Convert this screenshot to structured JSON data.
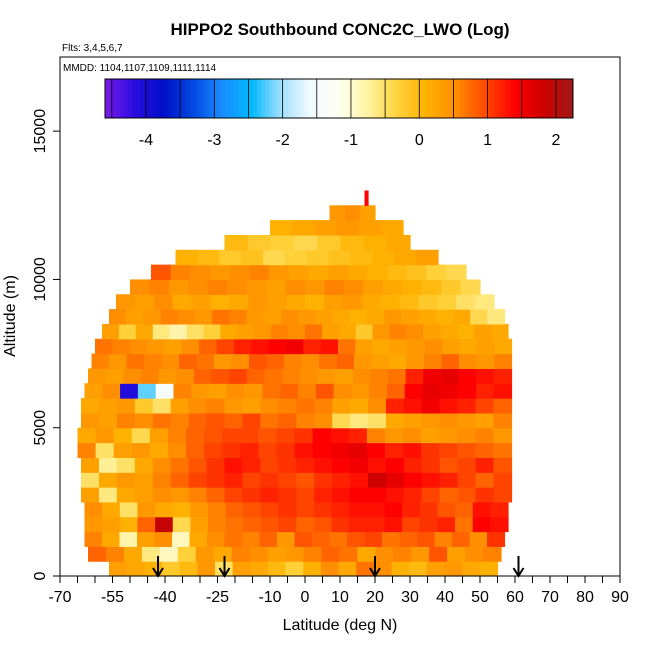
{
  "chart_data": {
    "type": "heatmap",
    "title": "HIPPO2 Southbound CONC2C_LWO (Log)",
    "subtitle_flights": "Flts: 3,4,5,6,7",
    "subtitle_dates": "MMDD: 1104,1107,1109,1111,1114",
    "xlabel": "Latitude (deg N)",
    "ylabel": "Altitude (m)",
    "xlim": [
      -70,
      90
    ],
    "ylim": [
      0,
      17500
    ],
    "x_ticks": [
      -70,
      -55,
      -40,
      -25,
      -10,
      0,
      10,
      20,
      30,
      40,
      50,
      60,
      70,
      80,
      90
    ],
    "x_minor_ticks": [
      -65,
      -60,
      -50,
      -45,
      -35,
      -30,
      -20,
      -15,
      -5,
      5,
      15,
      25,
      35,
      45,
      55,
      65,
      75,
      85
    ],
    "y_ticks": [
      0,
      5000,
      10000,
      15000
    ],
    "colorbar": {
      "range": [
        -4.6,
        2.25
      ],
      "ticks": [
        -4,
        -3,
        -2,
        -1,
        0,
        1,
        2
      ],
      "colors": [
        "#7a1be8",
        "#2a0ce0",
        "#0010c8",
        "#0048e0",
        "#1a8cff",
        "#00b8ff",
        "#9fdfff",
        "#f0fbff",
        "#fffff2",
        "#fff3a0",
        "#ffd23c",
        "#ffb000",
        "#ff8c00",
        "#ff4a00",
        "#ff0000",
        "#cc0000",
        "#a01818"
      ]
    },
    "arrow_markers_lat": [
      -42,
      -23,
      20,
      61
    ],
    "altitude_bins": [
      {
        "alt": [
          0,
          500
        ],
        "lat_range": [
          -56,
          55
        ],
        "values": [
          0.3,
          0.2,
          0.1,
          -0.2,
          0.0,
          0.4,
          -0.5,
          0.3,
          0.2,
          0.0,
          -0.3,
          0.1,
          0.5,
          0.2,
          0.7,
          0.5,
          0.1,
          0.0,
          0.3,
          0.4,
          0.2,
          0.1
        ]
      },
      {
        "alt": [
          500,
          1000
        ],
        "lat_range": [
          -62,
          56
        ],
        "values": [
          0.8,
          0.6,
          0.2,
          -0.6,
          -0.9,
          -0.3,
          0.4,
          0.2,
          0.6,
          0.5,
          0.3,
          0.4,
          0.6,
          0.8,
          0.7,
          0.2,
          0.5,
          0.6,
          0.4,
          0.9,
          0.3,
          0.5,
          0.6
        ]
      },
      {
        "alt": [
          1000,
          1500
        ],
        "lat_range": [
          -63,
          57
        ],
        "values": [
          0.6,
          0.2,
          -0.8,
          0.3,
          0.5,
          -0.9,
          0.2,
          0.5,
          0.7,
          0.6,
          0.8,
          0.4,
          0.9,
          0.8,
          0.7,
          0.9,
          1.0,
          0.7,
          0.8,
          0.9,
          0.6,
          0.8,
          0.5,
          1.1
        ]
      },
      {
        "alt": [
          1500,
          2000
        ],
        "lat_range": [
          -63,
          58
        ],
        "values": [
          0.4,
          0.3,
          0.1,
          0.8,
          1.9,
          -0.4,
          0.3,
          0.6,
          0.7,
          0.8,
          0.9,
          1.0,
          0.8,
          0.9,
          1.1,
          1.2,
          1.2,
          1.3,
          1.0,
          1.1,
          1.2,
          0.7,
          1.4,
          1.3
        ]
      },
      {
        "alt": [
          2000,
          2500
        ],
        "lat_range": [
          -63,
          58
        ],
        "values": [
          0.5,
          0.2,
          -0.5,
          0.4,
          0.2,
          0.1,
          0.4,
          0.6,
          0.8,
          0.9,
          1.0,
          1.1,
          1.0,
          1.1,
          1.2,
          1.3,
          1.3,
          1.4,
          1.2,
          1.1,
          0.9,
          0.8,
          1.3,
          1.2
        ]
      },
      {
        "alt": [
          2500,
          3000
        ],
        "lat_range": [
          -64,
          59
        ],
        "values": [
          0.3,
          -0.6,
          0.2,
          0.3,
          0.5,
          0.4,
          0.6,
          0.8,
          1.0,
          1.1,
          1.2,
          1.1,
          1.0,
          1.2,
          1.3,
          1.4,
          1.4,
          1.3,
          1.2,
          1.0,
          0.8,
          0.9,
          1.1,
          1.0
        ]
      },
      {
        "alt": [
          3000,
          3500
        ],
        "lat_range": [
          -64,
          59
        ],
        "values": [
          -0.5,
          0.2,
          0.4,
          0.3,
          0.6,
          0.8,
          1.0,
          1.1,
          1.2,
          1.0,
          1.1,
          1.0,
          0.9,
          1.1,
          1.2,
          1.3,
          1.8,
          1.6,
          1.4,
          1.3,
          1.2,
          1.0,
          0.8,
          1.0
        ]
      },
      {
        "alt": [
          3500,
          4000
        ],
        "lat_range": [
          -64,
          59
        ],
        "values": [
          0.3,
          -0.7,
          -0.5,
          0.2,
          0.5,
          0.7,
          0.9,
          1.1,
          1.3,
          1.2,
          1.0,
          1.1,
          1.2,
          1.3,
          1.4,
          1.5,
          1.3,
          1.4,
          1.2,
          1.1,
          0.9,
          1.0,
          1.2,
          0.9
        ]
      },
      {
        "alt": [
          4000,
          4500
        ],
        "lat_range": [
          -65,
          59
        ],
        "values": [
          0.6,
          -0.5,
          0.3,
          0.4,
          0.2,
          0.5,
          0.8,
          1.0,
          1.1,
          1.2,
          1.0,
          1.1,
          1.3,
          1.4,
          1.5,
          1.6,
          1.4,
          1.2,
          1.3,
          1.1,
          1.0,
          0.9,
          0.8,
          0.7
        ]
      },
      {
        "alt": [
          4500,
          5000
        ],
        "lat_range": [
          -65,
          59
        ],
        "values": [
          0.2,
          0.4,
          0.1,
          -0.4,
          0.3,
          0.6,
          0.8,
          0.9,
          1.0,
          1.0,
          0.9,
          1.0,
          1.1,
          1.4,
          1.3,
          1.2,
          0.6,
          0.4,
          0.5,
          0.3,
          0.4,
          0.5,
          0.6,
          0.4
        ]
      },
      {
        "alt": [
          5000,
          5500
        ],
        "lat_range": [
          -64,
          59
        ],
        "values": [
          0.4,
          0.3,
          0.6,
          0.5,
          0.7,
          0.6,
          0.8,
          0.9,
          0.8,
          1.0,
          0.7,
          0.8,
          0.6,
          0.5,
          -0.4,
          -0.6,
          -0.5,
          0.2,
          0.3,
          0.4,
          0.5,
          0.4,
          0.3,
          0.6
        ]
      },
      {
        "alt": [
          5500,
          6000
        ],
        "lat_range": [
          -64,
          59
        ],
        "values": [
          0.2,
          0.3,
          0.4,
          -0.2,
          -0.5,
          0.3,
          0.5,
          0.6,
          0.4,
          0.3,
          0.5,
          0.6,
          0.7,
          0.6,
          0.3,
          0.2,
          0.5,
          1.2,
          1.3,
          1.5,
          1.3,
          1.2,
          1.0,
          0.8
        ]
      },
      {
        "alt": [
          6000,
          6500
        ],
        "lat_range": [
          -63,
          59
        ],
        "values": [
          0.3,
          0.5,
          -4.1,
          -2.2,
          -1.5,
          0.6,
          0.4,
          0.3,
          0.5,
          0.4,
          0.7,
          0.8,
          0.6,
          0.9,
          0.5,
          0.4,
          0.6,
          0.8,
          1.4,
          1.6,
          1.5,
          1.4,
          1.2,
          1.3
        ]
      },
      {
        "alt": [
          6500,
          7000
        ],
        "lat_range": [
          -62,
          59
        ],
        "values": [
          0.4,
          0.3,
          0.5,
          0.6,
          0.4,
          0.5,
          0.8,
          0.9,
          1.0,
          0.8,
          0.7,
          0.6,
          0.5,
          0.4,
          0.3,
          0.5,
          0.6,
          0.7,
          1.2,
          1.5,
          1.6,
          1.4,
          1.3,
          1.2
        ]
      },
      {
        "alt": [
          7000,
          7500
        ],
        "lat_range": [
          -61,
          59
        ],
        "values": [
          0.6,
          0.4,
          0.7,
          0.6,
          0.5,
          0.8,
          0.7,
          0.4,
          0.5,
          0.9,
          0.8,
          0.6,
          0.5,
          0.7,
          0.8,
          0.4,
          0.3,
          0.2,
          0.4,
          0.6,
          0.8,
          0.5,
          0.4,
          0.6
        ]
      },
      {
        "alt": [
          7500,
          8000
        ],
        "lat_range": [
          -60,
          59
        ],
        "values": [
          0.7,
          0.6,
          0.5,
          0.4,
          0.3,
          0.5,
          0.8,
          1.0,
          1.2,
          1.3,
          1.4,
          1.5,
          1.2,
          1.3,
          0.7,
          0.3,
          0.2,
          0.3,
          0.4,
          0.5,
          0.3,
          0.2,
          0.3,
          0.2
        ]
      },
      {
        "alt": [
          8000,
          8500
        ],
        "lat_range": [
          -58,
          58
        ],
        "values": [
          0.3,
          -0.3,
          0.2,
          -0.6,
          -0.8,
          -0.5,
          -0.3,
          0.2,
          0.3,
          0.4,
          0.6,
          0.5,
          0.7,
          0.3,
          0.2,
          -0.2,
          0.4,
          0.6,
          0.5,
          0.3,
          0.2,
          0.1,
          0.3,
          0.2
        ]
      },
      {
        "alt": [
          8500,
          9000
        ],
        "lat_range": [
          -56,
          57
        ],
        "values": [
          0.5,
          0.3,
          0.4,
          0.6,
          0.5,
          0.4,
          0.7,
          0.6,
          0.4,
          0.3,
          0.5,
          0.4,
          0.3,
          0.2,
          0.1,
          0.2,
          0.4,
          0.3,
          0.2,
          0.1,
          0.2,
          -0.4,
          -0.6
        ]
      },
      {
        "alt": [
          9000,
          9500
        ],
        "lat_range": [
          -54,
          54
        ],
        "values": [
          0.4,
          0.3,
          0.5,
          0.2,
          0.3,
          0.1,
          0.2,
          0.4,
          0.3,
          0.2,
          0.1,
          0.3,
          0.4,
          0.2,
          0.1,
          0.0,
          -0.2,
          -0.3,
          -0.5,
          -0.6
        ]
      },
      {
        "alt": [
          9500,
          10000
        ],
        "lat_range": [
          -50,
          50
        ],
        "values": [
          0.5,
          0.6,
          0.4,
          0.5,
          0.6,
          0.5,
          0.4,
          0.3,
          0.5,
          0.4,
          0.6,
          0.5,
          0.3,
          0.2,
          0.1,
          0.0,
          -0.2,
          -0.4
        ]
      },
      {
        "alt": [
          10000,
          10500
        ],
        "lat_range": [
          -44,
          46
        ],
        "values": [
          0.9,
          0.6,
          0.5,
          0.4,
          0.5,
          0.6,
          0.4,
          0.3,
          0.2,
          0.3,
          0.2,
          0.1,
          0.0,
          -0.1,
          -0.3,
          -0.4
        ]
      },
      {
        "alt": [
          10500,
          11000
        ],
        "lat_range": [
          -37,
          38
        ],
        "values": [
          0.1,
          0.0,
          -0.2,
          -0.1,
          -0.4,
          -0.3,
          -0.2,
          -0.1,
          0.0,
          0.1,
          0.2,
          0.3
        ]
      },
      {
        "alt": [
          11000,
          11500
        ],
        "lat_range": [
          -23,
          30
        ],
        "values": [
          0.0,
          -0.2,
          -0.3,
          -0.4,
          -0.2,
          0.0,
          0.1,
          0.2
        ]
      },
      {
        "alt": [
          11500,
          12000
        ],
        "lat_range": [
          -10,
          28
        ],
        "values": [
          0.1,
          0.2,
          0.3,
          0.4,
          0.3,
          0.2
        ]
      },
      {
        "alt": [
          12000,
          12500
        ],
        "lat_range": [
          7,
          20
        ],
        "values": [
          0.4,
          0.5,
          0.3
        ]
      },
      {
        "alt": [
          12500,
          13000
        ],
        "lat_range": [
          17,
          18
        ],
        "values": [
          1.4
        ]
      }
    ]
  }
}
